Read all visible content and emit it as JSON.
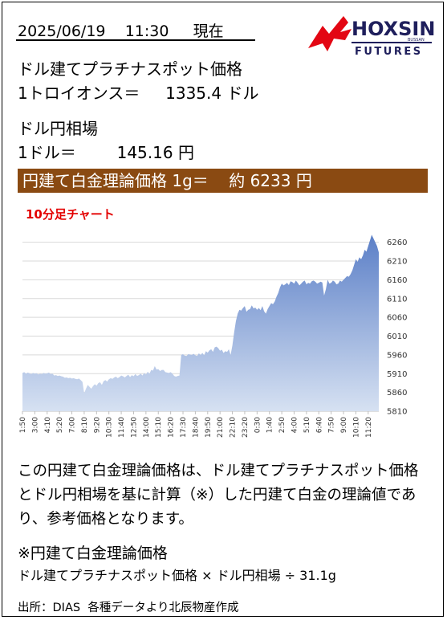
{
  "header": {
    "date": "2025/06/19",
    "time": "11:30",
    "now_label": "現在"
  },
  "logo": {
    "brand": "HOXSIN",
    "sub": "FUTURES",
    "tiny": "BUSSAN",
    "brand_color": "#1f1f5c",
    "mark_color": "#e30613"
  },
  "platinum": {
    "label": "ドル建てプラチナスポット価格",
    "unit_label": "1トロイオンス＝",
    "value": "1335.4",
    "currency": "ドル"
  },
  "fx": {
    "label": "ドル円相場",
    "unit_label": "1ドル＝",
    "value": "145.16",
    "currency": "円"
  },
  "banner": {
    "label": "円建て白金理論価格 1g＝",
    "approx": "約",
    "value": "6233",
    "currency": "円",
    "bg": "#8a4a12"
  },
  "chart_title": "10分足チャート",
  "chart_data": {
    "type": "area",
    "ylim": [
      5810,
      6285
    ],
    "y_ticks": [
      6260,
      6210,
      6160,
      6110,
      6060,
      6010,
      5960,
      5910,
      5860,
      5810
    ],
    "x_ticks": [
      "1:50",
      "3:00",
      "4:10",
      "5:20",
      "7:00",
      "8:10",
      "9:20",
      "10:30",
      "11:40",
      "12:50",
      "14:00",
      "15:10",
      "16:20",
      "17:30",
      "18:40",
      "19:50",
      "21:00",
      "22:10",
      "23:20",
      "0:30",
      "1:40",
      "2:50",
      "4:00",
      "5:10",
      "6:40",
      "7:50",
      "9:00",
      "10:10",
      "11:20"
    ],
    "x_labeled_index": [
      0,
      7,
      14,
      21,
      28,
      35,
      42,
      49,
      56,
      63,
      70,
      77,
      84,
      91,
      98,
      105,
      112,
      119,
      126,
      133,
      140,
      147,
      154,
      161,
      168,
      175,
      182,
      189,
      196
    ],
    "values": [
      5912,
      5914,
      5910,
      5913,
      5911,
      5909,
      5912,
      5910,
      5911,
      5908,
      5910,
      5909,
      5912,
      5910,
      5911,
      5913,
      5909,
      5910,
      5905,
      5906,
      5904,
      5905,
      5903,
      5902,
      5899,
      5900,
      5898,
      5899,
      5897,
      5898,
      5896,
      5895,
      5897,
      5893,
      5888,
      5858,
      5870,
      5880,
      5875,
      5870,
      5877,
      5882,
      5878,
      5885,
      5887,
      5880,
      5890,
      5893,
      5889,
      5895,
      5898,
      5896,
      5900,
      5902,
      5898,
      5901,
      5905,
      5903,
      5900,
      5904,
      5907,
      5901,
      5906,
      5903,
      5909,
      5904,
      5906,
      5910,
      5905,
      5912,
      5908,
      5915,
      5910,
      5920,
      5918,
      5930,
      5921,
      5922,
      5917,
      5920,
      5920,
      5914,
      5913,
      5912,
      5914,
      5910,
      5904,
      5902,
      5904,
      5905,
      5960,
      5962,
      5958,
      5957,
      5962,
      5961,
      5960,
      5963,
      5959,
      5957,
      5964,
      5960,
      5965,
      5959,
      5970,
      5966,
      5972,
      5975,
      5968,
      5980,
      5982,
      5978,
      5971,
      5974,
      5965,
      5970,
      5968,
      5975,
      5960,
      5985,
      6020,
      6050,
      6070,
      6080,
      6078,
      6085,
      6090,
      6075,
      6080,
      6082,
      6092,
      6084,
      6086,
      6080,
      6085,
      6079,
      6090,
      6076,
      6070,
      6082,
      6090,
      6098,
      6095,
      6102,
      6115,
      6125,
      6140,
      6150,
      6145,
      6148,
      6152,
      6146,
      6156,
      6154,
      6150,
      6158,
      6152,
      6145,
      6150,
      6155,
      6158,
      6148,
      6152,
      6150,
      6156,
      6158,
      6155,
      6150,
      6152,
      6155,
      6153,
      6118,
      6135,
      6160,
      6150,
      6152,
      6158,
      6155,
      6148,
      6150,
      6158,
      6155,
      6160,
      6165,
      6170,
      6168,
      6175,
      6185,
      6200,
      6215,
      6208,
      6220,
      6215,
      6225,
      6240,
      6235,
      6250,
      6265,
      6280,
      6270,
      6260,
      6250,
      6233
    ],
    "fill_top": "#5b7fc7",
    "fill_bottom": "#d6e1f2",
    "grid": true
  },
  "description": "この円建て白金理論価格は、ドル建てプラチナスポット価格とドル円相場を基に計算（※）した円建て白金の理論値であり、参考価格となります。",
  "formula": {
    "title": "※円建て白金理論価格",
    "text": "ドル建てプラチナスポット価格 × ドル円相場 ÷ 31.1g"
  },
  "source": "出所：DIAS  各種データより北辰物産作成"
}
